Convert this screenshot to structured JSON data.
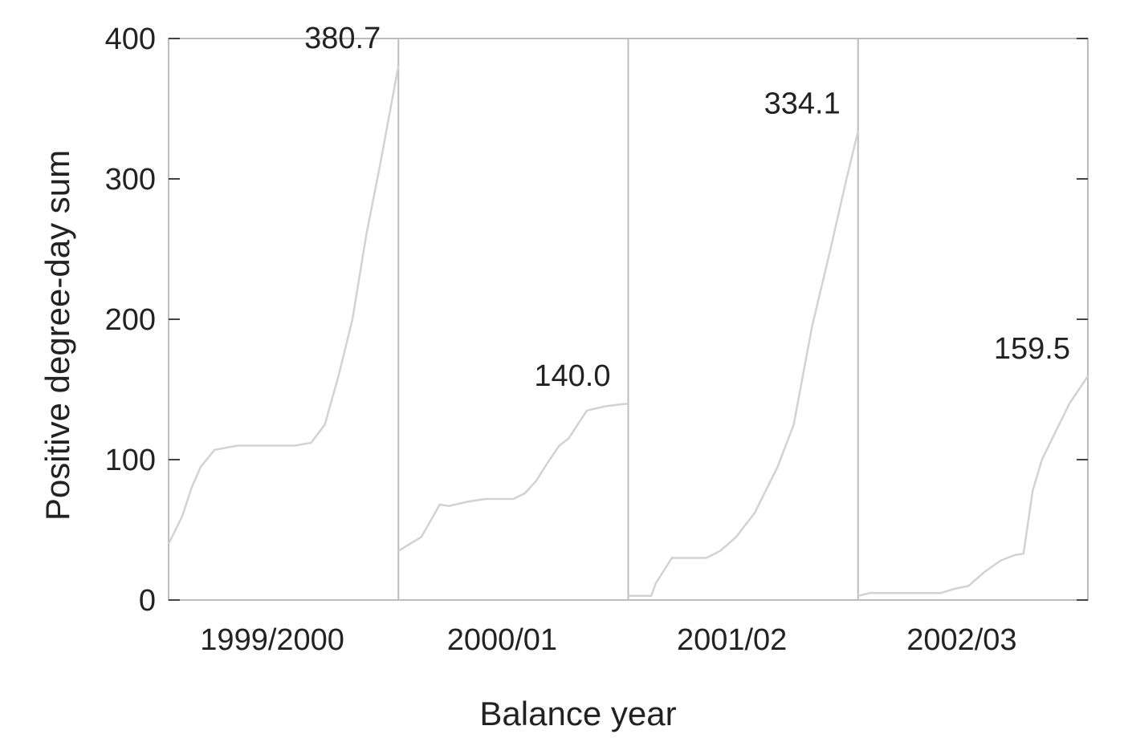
{
  "chart_data": {
    "type": "line",
    "xlabel": "Balance year",
    "ylabel": "Positive degree-day sum",
    "ylim": [
      0,
      400
    ],
    "yticks": [
      "0",
      "100",
      "200",
      "300",
      "400"
    ],
    "grid": false,
    "panels": [
      {
        "label": "1999/2000",
        "end_label": "380.7",
        "x": [
          0,
          0.06,
          0.1,
          0.14,
          0.2,
          0.3,
          0.4,
          0.45,
          0.49,
          0.55,
          0.62,
          0.68,
          0.74,
          0.8,
          0.86,
          0.92,
          1.0
        ],
        "y": [
          40,
          60,
          80,
          95,
          107,
          110,
          110,
          110,
          110,
          110,
          112,
          125,
          160,
          200,
          260,
          310,
          380.7
        ]
      },
      {
        "label": "2000/01",
        "end_label": "140.0",
        "x": [
          0,
          0.05,
          0.1,
          0.18,
          0.22,
          0.3,
          0.38,
          0.5,
          0.55,
          0.6,
          0.65,
          0.7,
          0.74,
          0.78,
          0.82,
          0.9,
          1.0
        ],
        "y": [
          35,
          40,
          45,
          68,
          67,
          70,
          72,
          72,
          76,
          85,
          98,
          110,
          115,
          125,
          135,
          138,
          140
        ]
      },
      {
        "label": "2001/02",
        "end_label": "334.1",
        "x": [
          0,
          0.05,
          0.1,
          0.12,
          0.19,
          0.27,
          0.34,
          0.4,
          0.47,
          0.55,
          0.65,
          0.72,
          0.8,
          0.88,
          0.95,
          1.0
        ],
        "y": [
          3,
          3,
          3,
          12,
          30,
          30,
          30,
          35,
          45,
          62,
          95,
          125,
          195,
          250,
          300,
          334.1
        ]
      },
      {
        "label": "2002/03",
        "end_label": "159.5",
        "x": [
          0,
          0.05,
          0.2,
          0.3,
          0.36,
          0.42,
          0.48,
          0.55,
          0.62,
          0.68,
          0.72,
          0.76,
          0.8,
          0.86,
          0.92,
          1.0
        ],
        "y": [
          3,
          5,
          5,
          5,
          5,
          8,
          10,
          20,
          28,
          32,
          33,
          78,
          100,
          120,
          140,
          159.5
        ]
      }
    ]
  }
}
